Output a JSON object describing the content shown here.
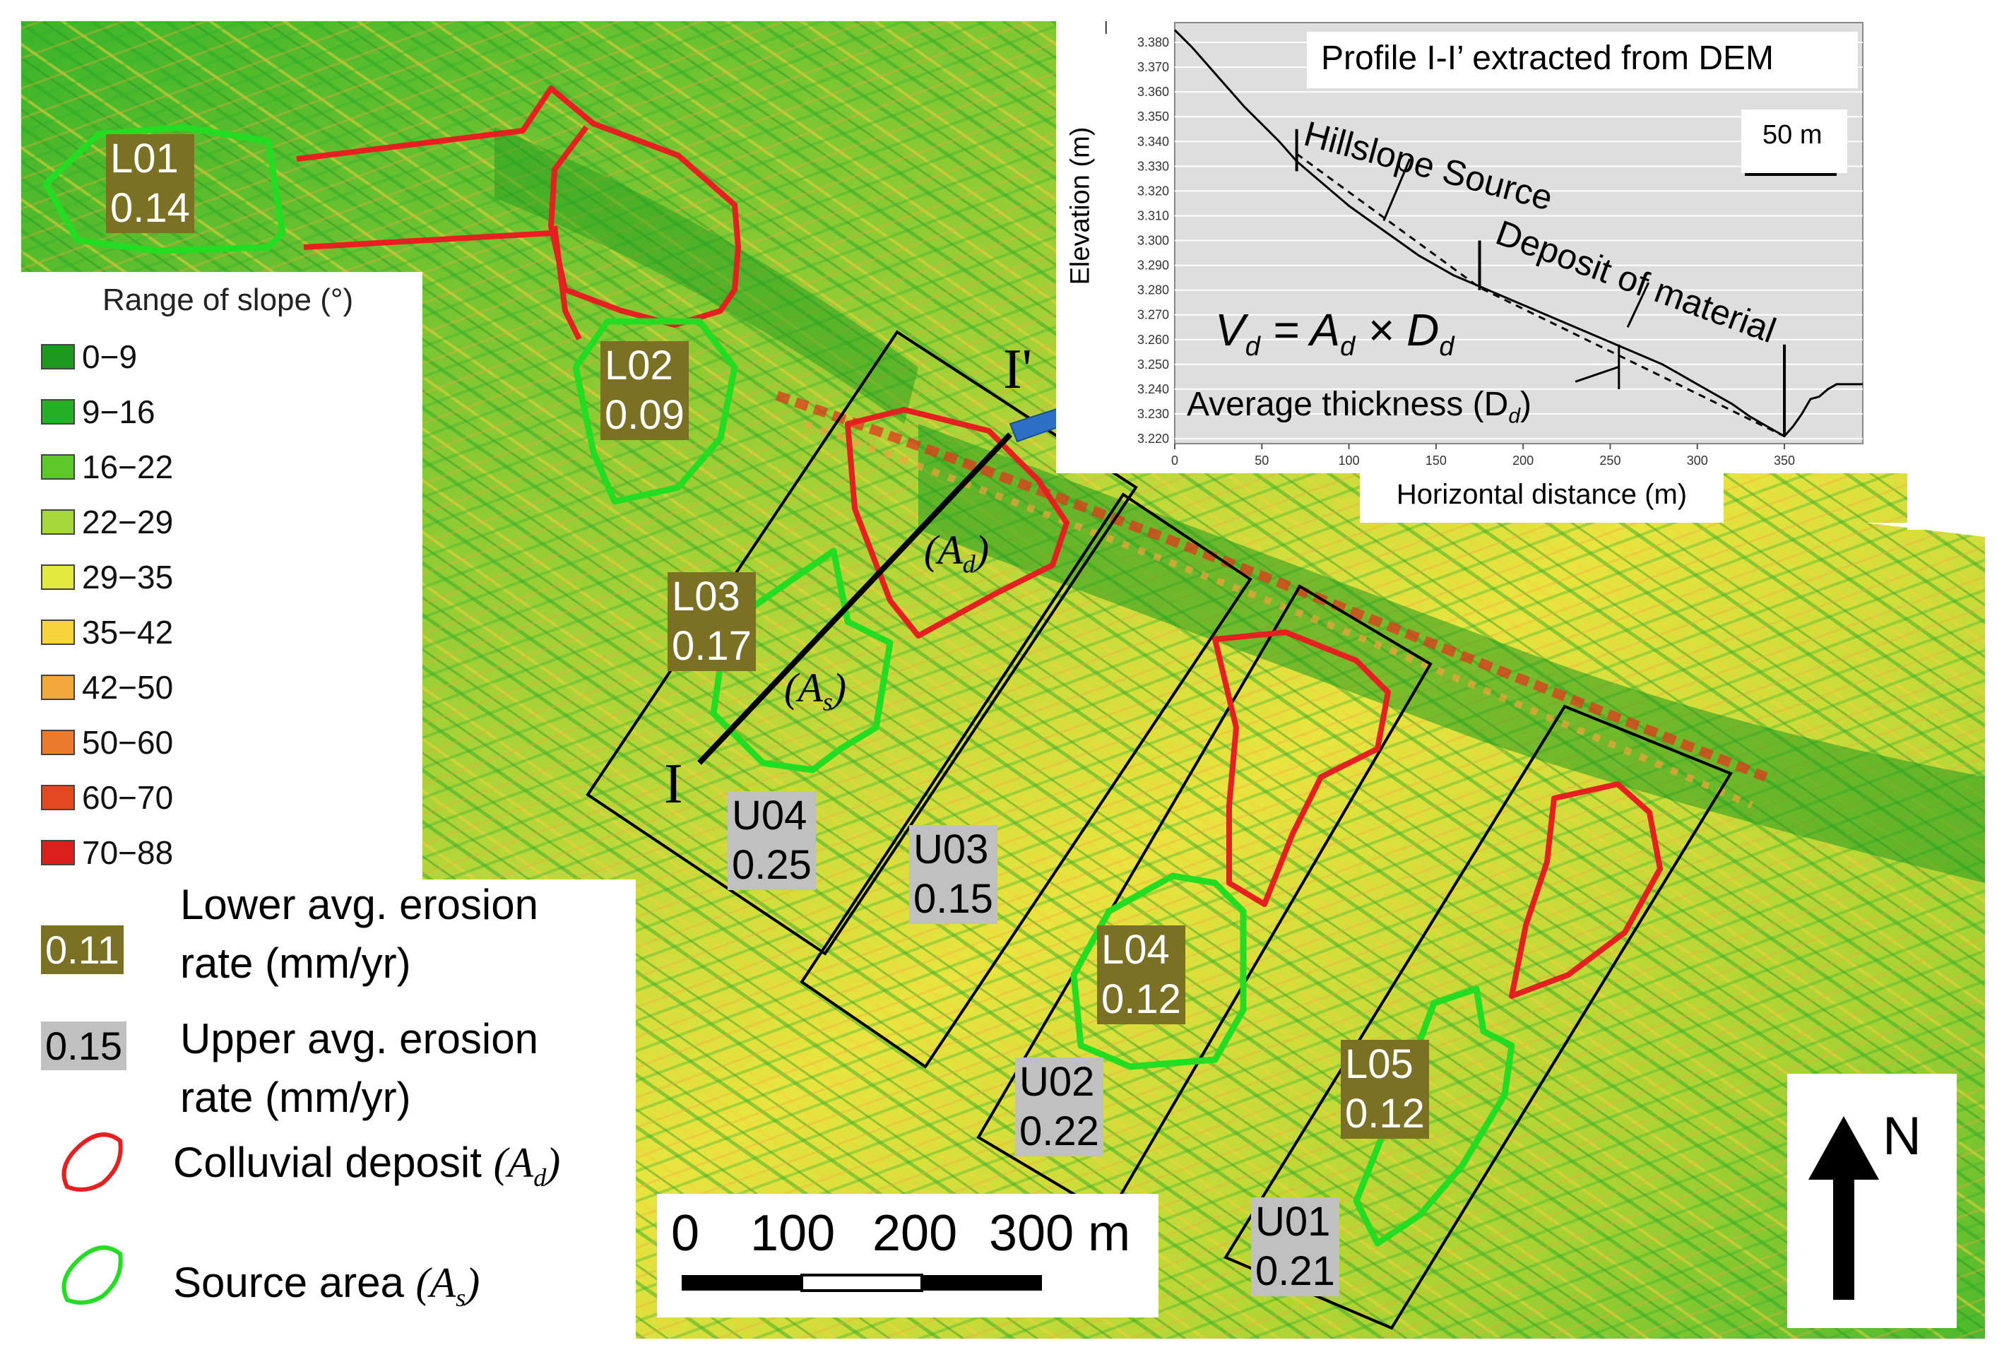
{
  "slope_legend": {
    "title": "Range of slope (°)",
    "classes": [
      {
        "label": "0−9",
        "color": "#1d9a1d"
      },
      {
        "label": "9−16",
        "color": "#26b026"
      },
      {
        "label": "16−22",
        "color": "#5cc82a"
      },
      {
        "label": "22−29",
        "color": "#a6d83a"
      },
      {
        "label": "29−35",
        "color": "#e2ea40"
      },
      {
        "label": "35−42",
        "color": "#f7d43a"
      },
      {
        "label": "42−50",
        "color": "#f2a93a"
      },
      {
        "label": "50−60",
        "color": "#ec7a2c"
      },
      {
        "label": "60−70",
        "color": "#e4481f"
      },
      {
        "label": "70−88",
        "color": "#dc1f1a"
      }
    ]
  },
  "symbol_legend": {
    "lower_sample": "0.11",
    "lower_text_1": "Lower avg. erosion",
    "lower_text_2": "rate (mm/yr)",
    "upper_sample": "0.15",
    "upper_text_1": "Upper avg. erosion",
    "upper_text_2": "rate (mm/yr)",
    "colluvial_text": "Colluvial deposit",
    "colluvial_sym": "(A",
    "colluvial_sub": "d",
    "source_text": "Source area",
    "source_sym": "(A",
    "source_sub": "s",
    "colluvial_color": "#e62020",
    "source_color": "#22dd22"
  },
  "sites_lower": [
    {
      "id": "L01",
      "rate": "0.14"
    },
    {
      "id": "L02",
      "rate": "0.09"
    },
    {
      "id": "L03",
      "rate": "0.17"
    },
    {
      "id": "L04",
      "rate": "0.12"
    },
    {
      "id": "L05",
      "rate": "0.12"
    }
  ],
  "sites_upper": [
    {
      "id": "U04",
      "rate": "0.25"
    },
    {
      "id": "U03",
      "rate": "0.15"
    },
    {
      "id": "U02",
      "rate": "0.22"
    },
    {
      "id": "U01",
      "rate": "0.21"
    }
  ],
  "map_annotations": {
    "ad_label": "(A",
    "ad_sub": "d",
    "as_label": "(A",
    "as_sub": "s",
    "profile_start": "I",
    "profile_end": "I'"
  },
  "scale_bar": {
    "labels": [
      "0",
      "100",
      "200",
      "300 m"
    ]
  },
  "north_arrow": {
    "label": "N"
  },
  "profile_inset": {
    "title": "Profile I-I’ extracted from DEM",
    "ylabel": "Elevation (m)",
    "xlabel": "Horizontal distance (m)",
    "scale_label": "50 m",
    "hillslope_label": "Hillslope Source",
    "deposit_label": "Deposit of material",
    "formula": "V",
    "formula_sub1": "d",
    "formula_mid": " = A",
    "formula_sub2": "d",
    "formula_times": " × D",
    "formula_sub3": "d",
    "thickness_label": "Average thickness (D",
    "thickness_sub": "d",
    "y_ticks": [
      "3.380",
      "3.370",
      "3.360",
      "3.350",
      "3.340",
      "3.330",
      "3.320",
      "3.310",
      "3.300",
      "3.290",
      "3.280",
      "3.270",
      "3.260",
      "3.250",
      "3.240",
      "3.230",
      "3.220"
    ],
    "x_ticks": [
      "0",
      "50",
      "100",
      "150",
      "200",
      "250",
      "300",
      "350"
    ]
  },
  "chart_data": {
    "type": "line",
    "title": "Profile I-I’ extracted from DEM",
    "xlabel": "Horizontal distance (m)",
    "ylabel": "Elevation (m)",
    "xlim": [
      0,
      395
    ],
    "ylim": [
      3.218,
      3.388
    ],
    "series": [
      {
        "x": [
          0,
          10,
          20,
          30,
          40,
          50,
          60,
          70,
          80,
          90,
          100,
          110,
          120,
          130,
          140,
          150,
          160,
          170,
          180,
          190,
          200,
          210,
          220,
          230,
          240,
          250,
          260,
          270,
          280,
          290,
          300,
          310,
          320,
          330,
          340,
          350,
          355,
          360,
          365,
          370,
          375,
          380,
          390,
          395
        ],
        "y": [
          3.385,
          3.378,
          3.37,
          3.362,
          3.354,
          3.347,
          3.34,
          3.332,
          3.326,
          3.32,
          3.314,
          3.309,
          3.304,
          3.299,
          3.294,
          3.29,
          3.286,
          3.283,
          3.28,
          3.277,
          3.274,
          3.271,
          3.268,
          3.265,
          3.262,
          3.259,
          3.256,
          3.253,
          3.25,
          3.246,
          3.242,
          3.238,
          3.234,
          3.229,
          3.225,
          3.221,
          3.225,
          3.23,
          3.236,
          3.237,
          3.24,
          3.242,
          3.242,
          3.242
        ]
      },
      {
        "x": [
          70,
          175,
          350
        ],
        "y": [
          3.335,
          3.281,
          3.221
        ]
      }
    ]
  }
}
